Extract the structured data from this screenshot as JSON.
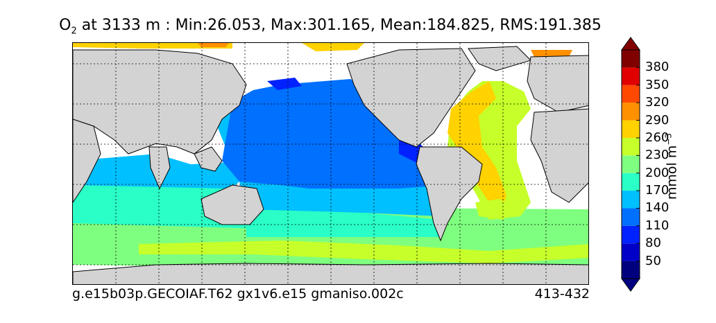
{
  "title": {
    "variable": "O",
    "subscript": "2",
    "rest": " at 3133 m : Min:26.053, Max:301.165, Mean:184.825, RMS:191.385"
  },
  "footer": {
    "case": "g.e15b03p.GECOIAF.T62 gx1v6.e15 gmaniso.002c",
    "years": "413-432"
  },
  "colorbar": {
    "unit": "mmol m",
    "unit_exponent": "−3",
    "ticks": [
      "50",
      "80",
      "110",
      "140",
      "170",
      "200",
      "230",
      "260",
      "290",
      "320",
      "350",
      "380"
    ],
    "colors": [
      "#00007f",
      "#0000c8",
      "#0022ff",
      "#0070ff",
      "#00c0ff",
      "#29ffc6",
      "#7fff7f",
      "#c6ff29",
      "#ffd200",
      "#ff9000",
      "#ff4800",
      "#e00000",
      "#800000"
    ],
    "extend_low_color": "#000080",
    "extend_high_color": "#800000"
  },
  "map": {
    "land_color": "#d3d3d3",
    "missing_color": "#ffffff",
    "gridlines": "dotted"
  }
}
